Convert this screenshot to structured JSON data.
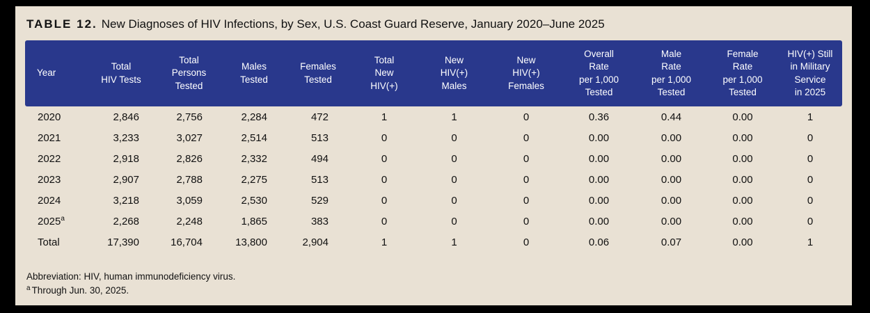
{
  "title": {
    "label": "TABLE 12.",
    "text": "New Diagnoses of HIV Infections, by Sex, U.S. Coast Guard Reserve, January 2020–June 2025"
  },
  "colors": {
    "header_bg": "#29388C",
    "header_text": "#FFFFFF",
    "panel_bg": "#E9E1D4",
    "frame": "#000000",
    "body_text": "#111111"
  },
  "table": {
    "columns": [
      {
        "key": "year",
        "label": "Year"
      },
      {
        "key": "total-hiv-tests",
        "label": "Total\nHIV Tests"
      },
      {
        "key": "total-persons-tested",
        "label": "Total\nPersons\nTested"
      },
      {
        "key": "males-tested",
        "label": "Males\nTested"
      },
      {
        "key": "females-tested",
        "label": "Females\nTested"
      },
      {
        "key": "total-new-hiv-positive",
        "label": "Total\nNew\nHIV(+)"
      },
      {
        "key": "new-hiv-positive-males",
        "label": "New\nHIV(+)\nMales"
      },
      {
        "key": "new-hiv-positive-females",
        "label": "New\nHIV(+)\nFemales"
      },
      {
        "key": "overall-rate-per-1000-tested",
        "label": "Overall\nRate\nper 1,000\nTested"
      },
      {
        "key": "male-rate-per-1000-tested",
        "label": "Male\nRate\nper 1,000\nTested"
      },
      {
        "key": "female-rate-per-1000-tested",
        "label": "Female\nRate\nper 1,000\nTested"
      },
      {
        "key": "hiv-positive-still-in-service",
        "label": "HIV(+) Still\nin Military\nService\nin 2025"
      }
    ],
    "rows": [
      {
        "year": "2020",
        "sup": "",
        "values": [
          "2,846",
          "2,756",
          "2,284",
          "472",
          "1",
          "1",
          "0",
          "0.36",
          "0.44",
          "0.00",
          "1"
        ]
      },
      {
        "year": "2021",
        "sup": "",
        "values": [
          "3,233",
          "3,027",
          "2,514",
          "513",
          "0",
          "0",
          "0",
          "0.00",
          "0.00",
          "0.00",
          "0"
        ]
      },
      {
        "year": "2022",
        "sup": "",
        "values": [
          "2,918",
          "2,826",
          "2,332",
          "494",
          "0",
          "0",
          "0",
          "0.00",
          "0.00",
          "0.00",
          "0"
        ]
      },
      {
        "year": "2023",
        "sup": "",
        "values": [
          "2,907",
          "2,788",
          "2,275",
          "513",
          "0",
          "0",
          "0",
          "0.00",
          "0.00",
          "0.00",
          "0"
        ]
      },
      {
        "year": "2024",
        "sup": "",
        "values": [
          "3,218",
          "3,059",
          "2,530",
          "529",
          "0",
          "0",
          "0",
          "0.00",
          "0.00",
          "0.00",
          "0"
        ]
      },
      {
        "year": "2025",
        "sup": "a",
        "values": [
          "2,268",
          "2,248",
          "1,865",
          "383",
          "0",
          "0",
          "0",
          "0.00",
          "0.00",
          "0.00",
          "0"
        ]
      },
      {
        "year": "Total",
        "sup": "",
        "values": [
          "17,390",
          "16,704",
          "13,800",
          "2,904",
          "1",
          "1",
          "0",
          "0.06",
          "0.07",
          "0.00",
          "1"
        ]
      }
    ]
  },
  "footnotes": {
    "abbreviation": "Abbreviation: HIV, human immunodeficiency virus.",
    "marker": "a",
    "note": "Through Jun. 30, 2025."
  }
}
